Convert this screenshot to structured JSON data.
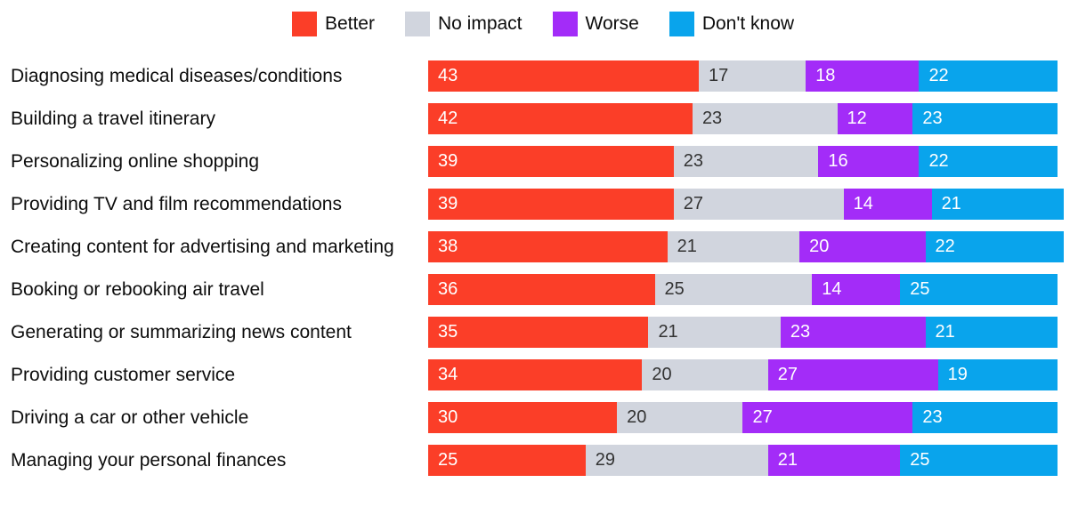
{
  "chart_data": {
    "type": "bar",
    "variant": "horizontal-stacked",
    "title": "",
    "xlabel": "",
    "ylabel": "",
    "value_unit": "percent",
    "xlim": [
      0,
      101
    ],
    "grid": false,
    "legend_position": "top-center",
    "data_labels": "inside-left",
    "categories": [
      "Diagnosing medical diseases/conditions",
      "Building a travel itinerary",
      "Personalizing online shopping",
      "Providing TV and film recommendations",
      "Creating content for advertising and marketing",
      "Booking or rebooking air travel",
      "Generating or summarizing news content",
      "Providing customer service",
      "Driving a car or other vehicle",
      "Managing your personal finances"
    ],
    "series": [
      {
        "name": "Better",
        "color": "#fb3e28",
        "label_text_color": "#ffffff",
        "values": [
          43,
          42,
          39,
          39,
          38,
          36,
          35,
          34,
          30,
          25
        ]
      },
      {
        "name": "No impact",
        "color": "#d1d5de",
        "label_text_color": "#333333",
        "values": [
          17,
          23,
          23,
          27,
          21,
          25,
          21,
          20,
          20,
          29
        ]
      },
      {
        "name": "Worse",
        "color": "#a32cf8",
        "label_text_color": "#ffffff",
        "values": [
          18,
          12,
          16,
          14,
          20,
          14,
          23,
          27,
          27,
          21
        ]
      },
      {
        "name": "Don't know",
        "color": "#09a4ec",
        "label_text_color": "#ffffff",
        "values": [
          22,
          23,
          22,
          21,
          22,
          25,
          21,
          19,
          23,
          25
        ]
      }
    ]
  }
}
